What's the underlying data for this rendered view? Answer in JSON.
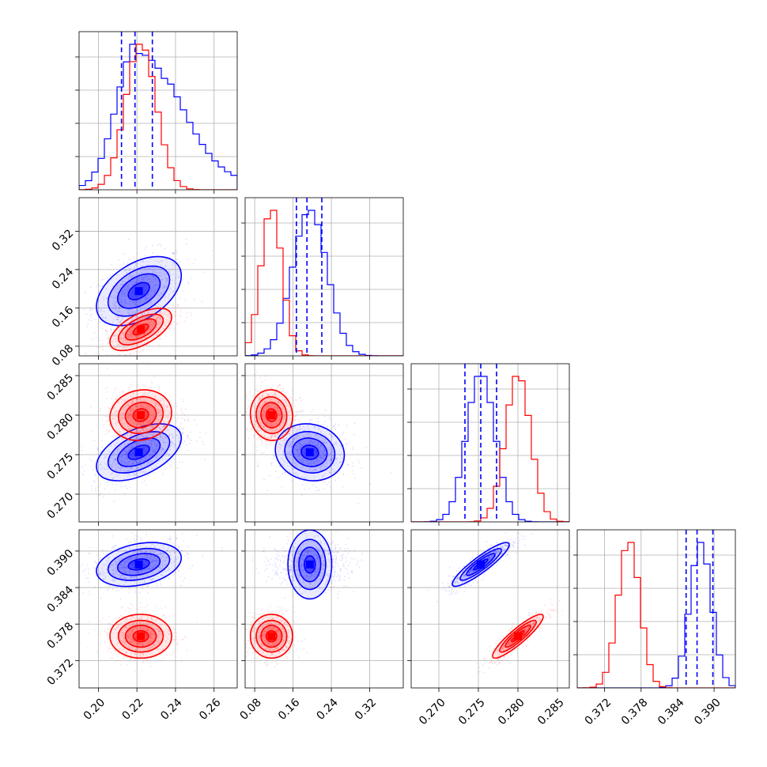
{
  "colors": {
    "a": "#0000ff",
    "b": "#ff0000"
  },
  "chart_data": {
    "type": "scatter",
    "subtype": "corner-plot",
    "grid": true,
    "title": "",
    "parameters": [
      {
        "id": "p0",
        "range": [
          0.19,
          0.272
        ],
        "ticks": [
          "0.20",
          "0.22",
          "0.24",
          "0.26"
        ],
        "tick_values": [
          0.2,
          0.22,
          0.24,
          0.26
        ]
      },
      {
        "id": "p1",
        "range": [
          0.06,
          0.39
        ],
        "ticks": [
          "0.08",
          "0.16",
          "0.24",
          "0.32"
        ],
        "tick_values": [
          0.08,
          0.16,
          0.24,
          0.32
        ]
      },
      {
        "id": "p2",
        "range": [
          0.2665,
          0.2865
        ],
        "ticks": [
          "0.270",
          "0.275",
          "0.280",
          "0.285"
        ],
        "tick_values": [
          0.27,
          0.275,
          0.28,
          0.285
        ]
      },
      {
        "id": "p3",
        "range": [
          0.3675,
          0.3935
        ],
        "ticks": [
          "0.372",
          "0.378",
          "0.384",
          "0.390"
        ],
        "tick_values": [
          0.372,
          0.378,
          0.384,
          0.39
        ]
      }
    ],
    "series": [
      {
        "color": "#0000ff",
        "mean": [
          0.221,
          0.195,
          0.2753,
          0.3878
        ],
        "std": [
          0.011,
          0.036,
          0.0018,
          0.0018
        ],
        "corr": {
          "0-1": 0.45,
          "0-2": 0.5,
          "0-3": 0.3,
          "1-2": -0.1,
          "1-3": 0.0,
          "2-3": 0.9
        },
        "quantiles": [
          [
            0.212,
            0.219,
            0.228
          ],
          [
            0.167,
            0.189,
            0.22
          ],
          [
            0.2733,
            0.2753,
            0.2773
          ],
          [
            0.3854,
            0.3872,
            0.3898
          ]
        ]
      },
      {
        "color": "#ff0000",
        "mean": [
          0.222,
          0.115,
          0.28,
          0.376
        ],
        "std": [
          0.008,
          0.022,
          0.0016,
          0.0018
        ],
        "corr": {
          "0-1": 0.6,
          "0-2": 0.1,
          "0-3": 0.0,
          "1-2": -0.05,
          "1-3": 0.0,
          "2-3": 0.9
        },
        "quantiles": []
      }
    ]
  }
}
